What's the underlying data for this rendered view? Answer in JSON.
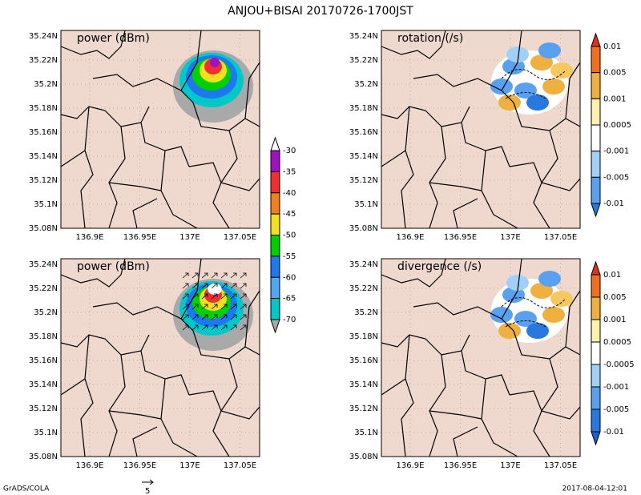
{
  "header": {
    "title": "ANJOU+BISAI  20170726-1700JST"
  },
  "panels": [
    {
      "label": "power (dBm)",
      "lat_labels": [
        "35.24N",
        "35.22N",
        "35.2N",
        "35.18N",
        "35.16N",
        "35.14N",
        "35.12N",
        "35.1N",
        "35.08N"
      ],
      "lon_labels": [
        "136.9E",
        "136.95E",
        "137E",
        "137.05E"
      ]
    },
    {
      "label": "rotation (/s)",
      "lat_labels": [
        "35.24N",
        "35.22N",
        "35.2N",
        "35.18N",
        "35.16N",
        "35.14N",
        "35.12N",
        "35.1N",
        "35.08N"
      ],
      "lon_labels": [
        "136.9E",
        "136.95E",
        "137E",
        "137.05E"
      ]
    },
    {
      "label": "power (dBm)",
      "lat_labels": [
        "35.24N",
        "35.22N",
        "35.2N",
        "35.18N",
        "35.16N",
        "35.14N",
        "35.12N",
        "35.1N",
        "35.08N"
      ],
      "lon_labels": [
        "136.9E",
        "136.95E",
        "137E",
        "137.05E"
      ]
    },
    {
      "label": "divergence (/s)",
      "lat_labels": [
        "35.24N",
        "35.22N",
        "35.2N",
        "35.18N",
        "35.16N",
        "35.14N",
        "35.12N",
        "35.1N",
        "35.08N"
      ],
      "lon_labels": [
        "136.9E",
        "136.95E",
        "137E",
        "137.05E"
      ]
    }
  ],
  "colorbars": [
    {
      "labels": [
        "-30",
        "-35",
        "-40",
        "-45",
        "-50",
        "-55",
        "-60",
        "-65",
        "-70"
      ]
    },
    {
      "labels": [
        "0.01",
        "0.005",
        "0.001",
        "0.0005",
        "-0.001",
        "-0.005",
        "-0.01"
      ]
    },
    {
      "labels": [
        "0.01",
        "0.005",
        "0.001",
        "0.0005",
        "-0.0005",
        "-0.001",
        "-0.005",
        "-0.01"
      ]
    }
  ],
  "footer": {
    "left": "GrADS/COLA",
    "vector_scale": "5",
    "right": "2017-08-04-12:01"
  }
}
